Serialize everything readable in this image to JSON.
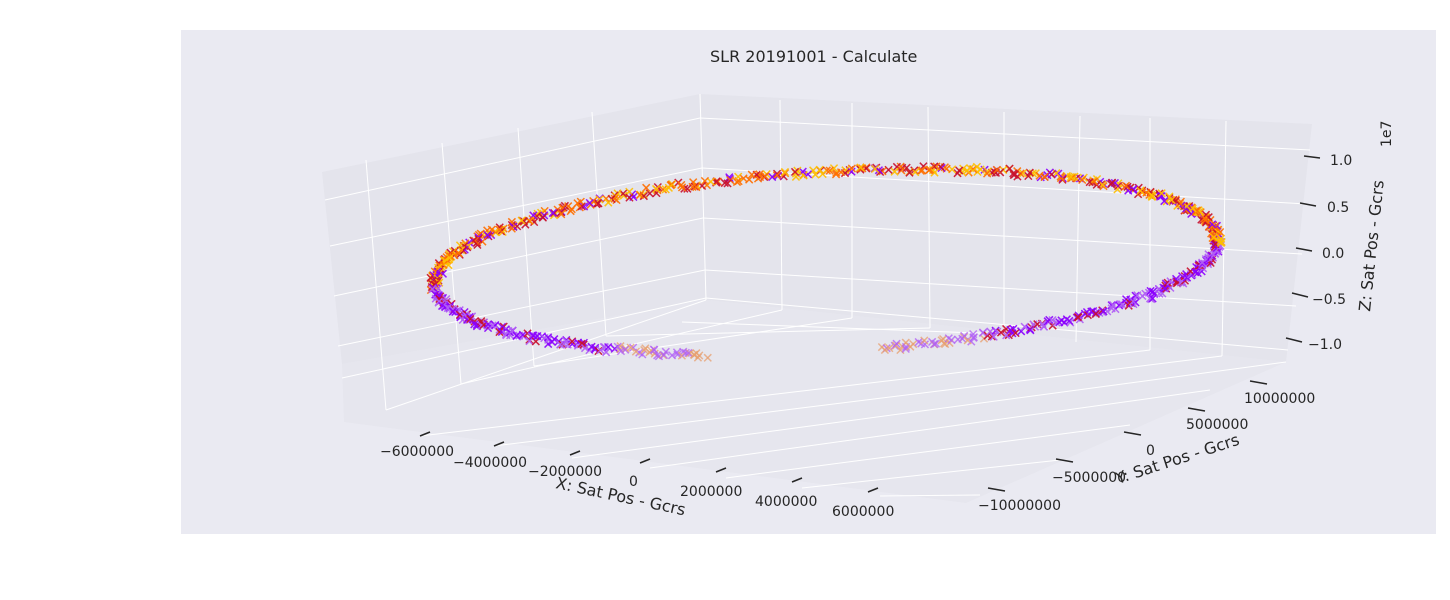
{
  "chart_data": {
    "type": "scatter",
    "projection": "3d",
    "title": "SLR 20191001 - Calculate",
    "xlabel": "X: Sat Pos - Gcrs",
    "ylabel": "Y: Sat Pos - Gcrs",
    "zlabel": "Z: Sat Pos - Gcrs",
    "z_offset_label": "1e7",
    "marker": "x",
    "grid": true,
    "x_ticks": [
      "−6000000",
      "−4000000",
      "−2000000",
      "0",
      "2000000",
      "4000000",
      "6000000"
    ],
    "y_ticks": [
      "−10000000",
      "−5000000",
      "0",
      "5000000",
      "10000000"
    ],
    "z_ticks": [
      "−1.0",
      "−0.5",
      "0.0",
      "0.5",
      "1.0"
    ],
    "xlim": [
      -7000000,
      7000000
    ],
    "ylim": [
      -12000000,
      12000000
    ],
    "zlim": [
      -12000000,
      12000000
    ],
    "orbit": {
      "description_values_in_data_units": true,
      "x_amplitude": 6400000,
      "y_amplitude": 11000000,
      "z_amplitude": 8500000,
      "point_count": 900,
      "missing_arc": "near-side gap between x≈-900000 and x≈1000000"
    },
    "colors": {
      "purple": "#8b00ff",
      "light_purple": "#b160f5",
      "red": "#c8102e",
      "orange": "#ff6f00",
      "gold": "#ffbf00",
      "light_orange": "#e8a070"
    },
    "style": {
      "panel_color": "#eaeaf2",
      "pane_color": "#e4e4ec",
      "grid_color": "#ffffff"
    }
  }
}
